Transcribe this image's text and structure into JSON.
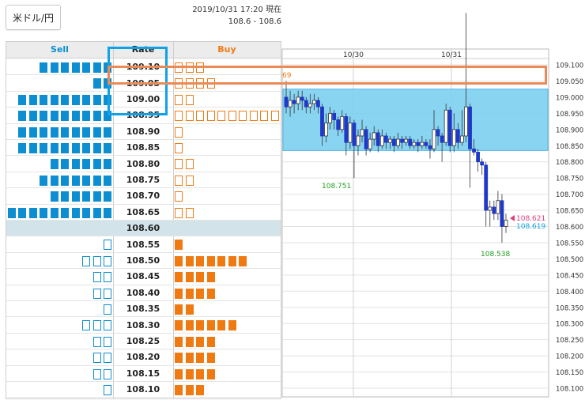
{
  "pair_button": "米ドル/円",
  "timestamp": "2019/10/31 17:20 現在",
  "price_range": "108.6 - 108.6",
  "headers": {
    "sell": "Sell",
    "rate": "Rate",
    "buy": "Buy"
  },
  "colors": {
    "sell": "#0c8ed0",
    "buy": "#f07a12",
    "highlight_blue": "#10a1e6",
    "highlight_orange": "#ec8a55",
    "band": "#7dd0f0"
  },
  "order_book": [
    {
      "rate": "109.10",
      "sell": 7,
      "sell_filled": true,
      "buy": 3,
      "buy_filled": false
    },
    {
      "rate": "109.05",
      "sell": 2,
      "sell_filled": true,
      "buy": 4,
      "buy_filled": false
    },
    {
      "rate": "109.00",
      "sell": 9,
      "sell_filled": true,
      "buy": 2,
      "buy_filled": false
    },
    {
      "rate": "108.95",
      "sell": 9,
      "sell_filled": true,
      "buy": 10,
      "buy_filled": false
    },
    {
      "rate": "108.90",
      "sell": 9,
      "sell_filled": true,
      "buy": 1,
      "buy_filled": false
    },
    {
      "rate": "108.85",
      "sell": 9,
      "sell_filled": true,
      "buy": 1,
      "buy_filled": false
    },
    {
      "rate": "108.80",
      "sell": 6,
      "sell_filled": true,
      "buy": 2,
      "buy_filled": false
    },
    {
      "rate": "108.75",
      "sell": 7,
      "sell_filled": true,
      "buy": 2,
      "buy_filled": false
    },
    {
      "rate": "108.70",
      "sell": 6,
      "sell_filled": true,
      "buy": 1,
      "buy_filled": false
    },
    {
      "rate": "108.65",
      "sell": 10,
      "sell_filled": true,
      "buy": 2,
      "buy_filled": false
    },
    {
      "rate": "108.60",
      "sell": 0,
      "sell_filled": true,
      "buy": 0,
      "buy_filled": true,
      "current": true
    },
    {
      "rate": "108.55",
      "sell": 1,
      "sell_filled": false,
      "buy": 1,
      "buy_filled": true
    },
    {
      "rate": "108.50",
      "sell": 3,
      "sell_filled": false,
      "buy": 7,
      "buy_filled": true
    },
    {
      "rate": "108.45",
      "sell": 2,
      "sell_filled": false,
      "buy": 4,
      "buy_filled": true
    },
    {
      "rate": "108.40",
      "sell": 2,
      "sell_filled": false,
      "buy": 4,
      "buy_filled": true
    },
    {
      "rate": "108.35",
      "sell": 1,
      "sell_filled": false,
      "buy": 2,
      "buy_filled": true
    },
    {
      "rate": "108.30",
      "sell": 3,
      "sell_filled": false,
      "buy": 6,
      "buy_filled": true
    },
    {
      "rate": "108.25",
      "sell": 2,
      "sell_filled": false,
      "buy": 4,
      "buy_filled": true
    },
    {
      "rate": "108.20",
      "sell": 2,
      "sell_filled": false,
      "buy": 4,
      "buy_filled": true
    },
    {
      "rate": "108.15",
      "sell": 2,
      "sell_filled": false,
      "buy": 4,
      "buy_filled": true
    },
    {
      "rate": "108.10",
      "sell": 1,
      "sell_filled": false,
      "buy": 3,
      "buy_filled": true
    }
  ],
  "chart": {
    "x_labels": [
      "10/30",
      "10/31"
    ],
    "y_labels": [
      "109.100",
      "109.050",
      "109.000",
      "108.950",
      "108.900",
      "108.850",
      "108.800",
      "108.750",
      "108.700",
      "108.650",
      "108.600",
      "108.550",
      "108.500",
      "108.450",
      "108.400",
      "108.350",
      "108.300",
      "108.250",
      "108.200",
      "108.150",
      "108.100"
    ],
    "high_label": "69",
    "low_label_1": "108.751",
    "low_label_2": "108.538",
    "price_tag_1": "108.621",
    "price_tag_2": "108.619",
    "ylim": [
      108.1,
      109.1
    ],
    "band_range": [
      108.835,
      109.025
    ],
    "highlight_rate": 108.95,
    "candles": [
      [
        109.0,
        108.97,
        109.05,
        108.95
      ],
      [
        108.97,
        108.99,
        109.02,
        108.94
      ],
      [
        108.99,
        108.98,
        109.01,
        108.95
      ],
      [
        108.98,
        109.0,
        109.02,
        108.96
      ],
      [
        109.0,
        108.99,
        109.02,
        108.96
      ],
      [
        108.99,
        108.97,
        109.0,
        108.95
      ],
      [
        108.97,
        108.98,
        109.01,
        108.95
      ],
      [
        108.98,
        108.99,
        109.01,
        108.96
      ],
      [
        108.99,
        108.97,
        109.0,
        108.95
      ],
      [
        108.97,
        108.88,
        108.98,
        108.85
      ],
      [
        108.88,
        108.92,
        108.95,
        108.86
      ],
      [
        108.92,
        108.95,
        108.97,
        108.9
      ],
      [
        108.95,
        108.93,
        108.96,
        108.9
      ],
      [
        108.93,
        108.9,
        108.94,
        108.88
      ],
      [
        108.9,
        108.94,
        108.96,
        108.89
      ],
      [
        108.94,
        108.86,
        108.95,
        108.82
      ],
      [
        108.86,
        108.92,
        108.94,
        108.84
      ],
      [
        108.92,
        108.85,
        108.93,
        108.75
      ],
      [
        108.85,
        108.88,
        108.9,
        108.82
      ],
      [
        108.88,
        108.9,
        108.93,
        108.86
      ],
      [
        108.9,
        108.84,
        108.91,
        108.82
      ],
      [
        108.84,
        108.87,
        108.89,
        108.83
      ],
      [
        108.87,
        108.89,
        108.91,
        108.85
      ],
      [
        108.89,
        108.85,
        108.9,
        108.83
      ],
      [
        108.85,
        108.88,
        108.9,
        108.84
      ],
      [
        108.88,
        108.86,
        108.89,
        108.84
      ],
      [
        108.86,
        108.87,
        108.88,
        108.84
      ],
      [
        108.87,
        108.85,
        108.88,
        108.83
      ],
      [
        108.85,
        108.87,
        108.89,
        108.84
      ],
      [
        108.87,
        108.86,
        108.88,
        108.84
      ],
      [
        108.86,
        108.87,
        108.88,
        108.85
      ],
      [
        108.87,
        108.85,
        108.88,
        108.84
      ],
      [
        108.85,
        108.86,
        108.87,
        108.84
      ],
      [
        108.86,
        108.85,
        108.87,
        108.83
      ],
      [
        108.85,
        108.86,
        108.88,
        108.84
      ],
      [
        108.86,
        108.85,
        108.87,
        108.84
      ],
      [
        108.85,
        108.84,
        108.87,
        108.81
      ],
      [
        108.84,
        108.9,
        108.96,
        108.83
      ],
      [
        108.9,
        108.88,
        108.91,
        108.85
      ],
      [
        108.88,
        108.86,
        108.89,
        108.8
      ],
      [
        108.86,
        108.96,
        108.98,
        108.85
      ],
      [
        108.96,
        108.85,
        108.97,
        108.83
      ],
      [
        108.85,
        108.9,
        108.95,
        108.83
      ],
      [
        108.9,
        108.86,
        108.92,
        108.84
      ],
      [
        108.86,
        108.88,
        108.96,
        108.85
      ],
      [
        108.88,
        108.97,
        109.26,
        108.86
      ],
      [
        108.97,
        108.84,
        108.98,
        108.72
      ],
      [
        108.84,
        108.83,
        108.87,
        108.82
      ],
      [
        108.83,
        108.8,
        108.84,
        108.77
      ],
      [
        108.8,
        108.79,
        108.81,
        108.76
      ],
      [
        108.79,
        108.65,
        108.8,
        108.6
      ],
      [
        108.65,
        108.66,
        108.68,
        108.6
      ],
      [
        108.66,
        108.64,
        108.68,
        108.62
      ],
      [
        108.64,
        108.68,
        108.71,
        108.62
      ],
      [
        108.68,
        108.6,
        108.7,
        108.55
      ],
      [
        108.6,
        108.62,
        108.64,
        108.58
      ]
    ]
  }
}
